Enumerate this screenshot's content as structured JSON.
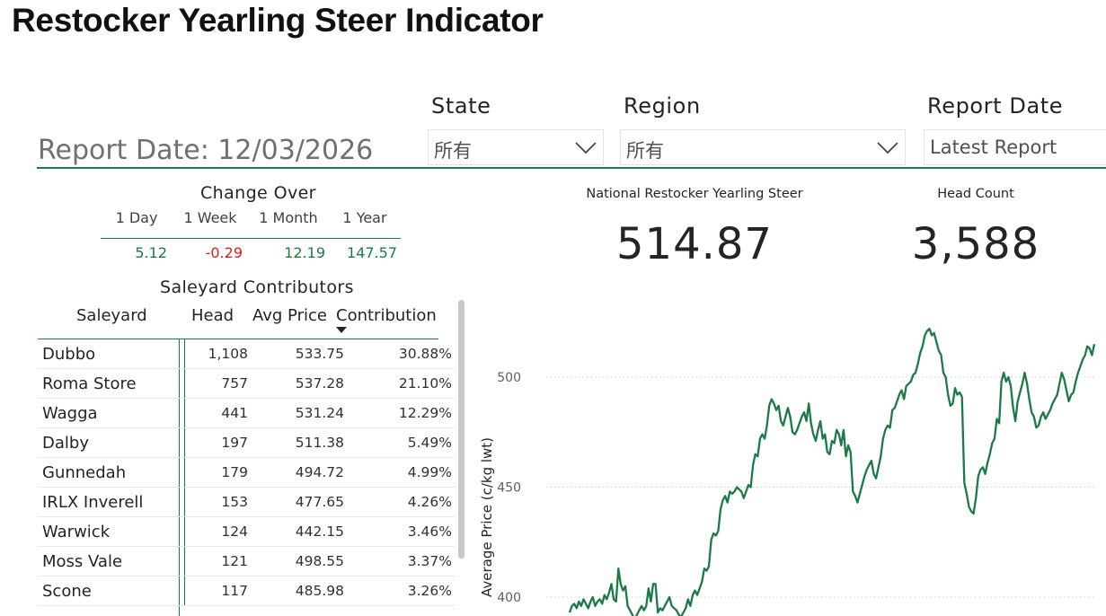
{
  "page": {
    "title": "Restocker Yearling Steer Indicator"
  },
  "filters": {
    "state": {
      "label": "State",
      "value": "所有"
    },
    "region": {
      "label": "Region",
      "value": "所有"
    },
    "report_date": {
      "label": "Report Date",
      "value": "Latest Report"
    }
  },
  "report_date_label": "Report Date: 12/03/2026",
  "change_over": {
    "title": "Change Over",
    "periods": [
      "1 Day",
      "1 Week",
      "1 Month",
      "1 Year"
    ],
    "values": [
      "5.12",
      "-0.29",
      "12.19",
      "147.57"
    ],
    "colors": {
      "positive": "#1b7a46",
      "negative": "#d42020"
    }
  },
  "saleyard_contributors": {
    "title": "Saleyard Contributors",
    "columns": [
      "Saleyard",
      "Head",
      "Avg Price",
      "Contribution"
    ],
    "sorted_by": "Contribution",
    "rows": [
      [
        "Dubbo",
        "1,108",
        "533.75",
        "30.88%"
      ],
      [
        "Roma Store",
        "757",
        "537.28",
        "21.10%"
      ],
      [
        "Wagga",
        "441",
        "531.24",
        "12.29%"
      ],
      [
        "Dalby",
        "197",
        "511.38",
        "5.49%"
      ],
      [
        "Gunnedah",
        "179",
        "494.72",
        "4.99%"
      ],
      [
        "IRLX Inverell",
        "153",
        "477.65",
        "4.26%"
      ],
      [
        "Warwick",
        "124",
        "442.15",
        "3.46%"
      ],
      [
        "Moss Vale",
        "121",
        "498.55",
        "3.37%"
      ],
      [
        "Scone",
        "117",
        "485.98",
        "3.26%"
      ]
    ]
  },
  "kpis": {
    "national": {
      "title": "National Restocker Yearling Steer",
      "value": "514.87"
    },
    "head_count": {
      "title": "Head Count",
      "value": "3,588"
    }
  },
  "chart_data": {
    "type": "line",
    "title": "",
    "ylabel": "Average Price (c/kg lwt)",
    "xlabel": "",
    "ylim": [
      385,
      515
    ],
    "y_ticks": [
      "400",
      "450",
      "500"
    ],
    "grid": true,
    "line_color": "#1b7a46",
    "series": [
      {
        "values": [
          393,
          396,
          397,
          395,
          398,
          396,
          399,
          397,
          395,
          398,
          400,
          396,
          398,
          399,
          397,
          401,
          399,
          402,
          406,
          399,
          398,
          413,
          406,
          403,
          405,
          396,
          394,
          392,
          390,
          392,
          394,
          396,
          394,
          396,
          404,
          398,
          406,
          406,
          393,
          395,
          394,
          396,
          398,
          400,
          396,
          395,
          394,
          392,
          391,
          393,
          395,
          399,
          396,
          401,
          403,
          401,
          404,
          407,
          413,
          412,
          414,
          426,
          429,
          428,
          430,
          440,
          444,
          446,
          443,
          448,
          447,
          448,
          450,
          449,
          448,
          445,
          448,
          451,
          450,
          460,
          465,
          464,
          472,
          474,
          472,
          478,
          487,
          490,
          488,
          485,
          487,
          480,
          478,
          482,
          486,
          482,
          475,
          474,
          476,
          479,
          482,
          484,
          480,
          488,
          479,
          474,
          471,
          476,
          480,
          472,
          474,
          466,
          465,
          471,
          470,
          476,
          474,
          469,
          476,
          464,
          469,
          466,
          448,
          446,
          443,
          447,
          451,
          455,
          458,
          460,
          462,
          456,
          454,
          459,
          464,
          472,
          476,
          478,
          477,
          485,
          486,
          489,
          492,
          494,
          490,
          496,
          497,
          498,
          501,
          502,
          506,
          511,
          514,
          519,
          521,
          522,
          519,
          520,
          516,
          512,
          510,
          502,
          500,
          492,
          487,
          488,
          495,
          492,
          493,
          491,
          452,
          447,
          441,
          439,
          438,
          445,
          455,
          458,
          459,
          456,
          461,
          465,
          470,
          472,
          481,
          479,
          498,
          502,
          498,
          500,
          496,
          486,
          480,
          489,
          493,
          497,
          502,
          497,
          490,
          484,
          482,
          477,
          478,
          482,
          484,
          481,
          483,
          485,
          488,
          490,
          492,
          497,
          502,
          499,
          494,
          489,
          492,
          493,
          498,
          502,
          505,
          508,
          510,
          514,
          513,
          510,
          515
        ]
      }
    ]
  }
}
